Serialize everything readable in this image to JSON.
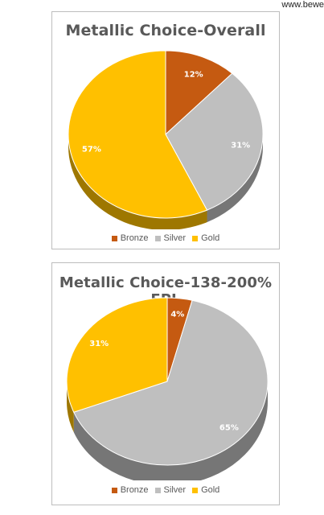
{
  "watermark": "www.bewe",
  "chart_data": [
    {
      "type": "pie",
      "title": "Metallic Choice-Overall",
      "categories": [
        "Bronze",
        "Silver",
        "Gold"
      ],
      "values": [
        12,
        31,
        57
      ],
      "labels": [
        "12%",
        "31%",
        "57%"
      ],
      "colors": [
        "#c55a11",
        "#bfbfbf",
        "#ffc000"
      ],
      "legend": "bottom"
    },
    {
      "type": "pie",
      "title": "Metallic Choice-138-200% FPL",
      "categories": [
        "Bronze",
        "Silver",
        "Gold"
      ],
      "values": [
        4,
        65,
        31
      ],
      "labels": [
        "4%",
        "65%",
        "31%"
      ],
      "colors": [
        "#c55a11",
        "#bfbfbf",
        "#ffc000"
      ],
      "legend": "bottom"
    }
  ]
}
